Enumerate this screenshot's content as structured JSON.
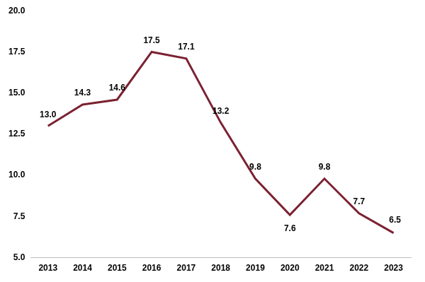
{
  "chart_data": {
    "type": "line",
    "categories": [
      "2013",
      "2014",
      "2015",
      "2016",
      "2017",
      "2018",
      "2019",
      "2020",
      "2021",
      "2022",
      "2023"
    ],
    "values": [
      13.0,
      14.3,
      14.6,
      17.5,
      17.1,
      13.2,
      9.8,
      7.6,
      9.8,
      7.7,
      6.5
    ],
    "value_labels": [
      "13.0",
      "14.3",
      "14.6",
      "17.5",
      "17.1",
      "13.2",
      "9.8",
      "7.6",
      "9.8",
      "7.7",
      "6.5"
    ],
    "color": "#7b2232",
    "ylim": [
      5,
      20
    ],
    "yticks": [
      {
        "value": 5,
        "label": "5.0"
      },
      {
        "value": 7.5,
        "label": "7.5"
      },
      {
        "value": 10,
        "label": "10.0"
      },
      {
        "value": 12.5,
        "label": "12.5"
      },
      {
        "value": 15,
        "label": "15.0"
      },
      {
        "value": 17.5,
        "label": "17.5"
      },
      {
        "value": 20,
        "label": "20.0"
      }
    ],
    "grid": false,
    "data_labels": true
  }
}
